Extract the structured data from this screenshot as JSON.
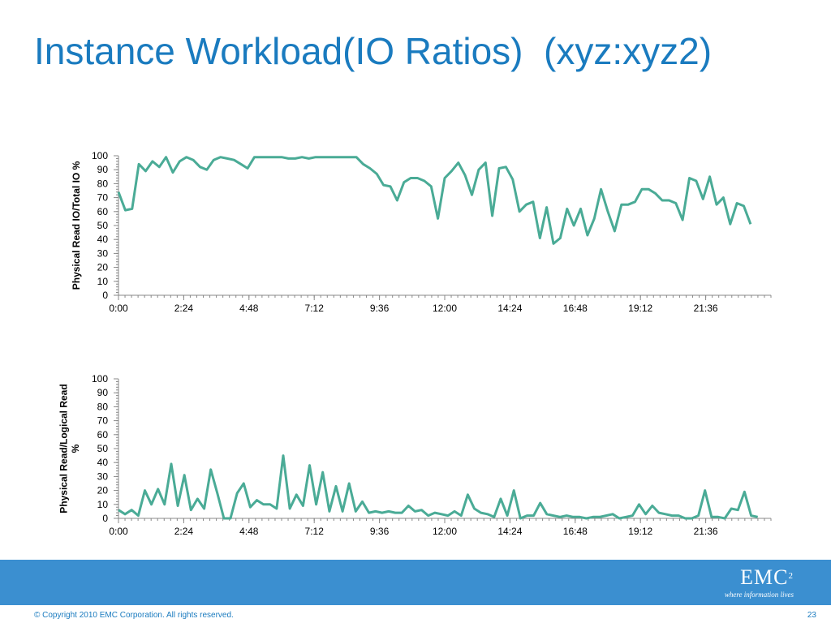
{
  "slide": {
    "title": "Instance Workload(IO Ratios)  (xyz:xyz2)",
    "copyright": "© Copyright 2010  EMC Corporation.  All rights reserved.",
    "page_number": "23",
    "logo_text": "EMC",
    "logo_superscript": "2",
    "logo_tagline": "where information lives"
  },
  "colors": {
    "title": "#1a7bbf",
    "series": "#4aab96",
    "footer_band": "#3b8fd0"
  },
  "chart_data": [
    {
      "type": "line",
      "title": "",
      "xlabel": "",
      "ylabel": "Physical Read IO/Total IO %",
      "ylim": [
        0,
        100
      ],
      "yticks": [
        "0",
        "10",
        "20",
        "30",
        "40",
        "50",
        "60",
        "70",
        "80",
        "90",
        "100"
      ],
      "xticks": [
        "0:00",
        "2:24",
        "4:48",
        "7:12",
        "9:36",
        "12:00",
        "14:24",
        "16:48",
        "19:12",
        "21:36"
      ],
      "x_range_hours": [
        0,
        24
      ],
      "grid": false,
      "series": [
        {
          "values": [
            74,
            61,
            62,
            94,
            89,
            96,
            92,
            99,
            88,
            96,
            99,
            97,
            92,
            90,
            97,
            99,
            98,
            97,
            94,
            91,
            99,
            99,
            99,
            99,
            99,
            98,
            98,
            99,
            98,
            99,
            99,
            99,
            99,
            99,
            99,
            99,
            94,
            91,
            87,
            79,
            78,
            68,
            81,
            84,
            84,
            82,
            78,
            55,
            84,
            89,
            95,
            86,
            72,
            90,
            95,
            57,
            91,
            92,
            83,
            60,
            65,
            67,
            41,
            63,
            37,
            41,
            62,
            50,
            62,
            43,
            55,
            76,
            60,
            46,
            65,
            65,
            67,
            76,
            76,
            73,
            68,
            68,
            66,
            54,
            84,
            82,
            69,
            85,
            65,
            70,
            51,
            66,
            64,
            51
          ],
          "x_start_hours": 0,
          "x_step_hours": 0.25
        }
      ]
    },
    {
      "type": "line",
      "title": "",
      "xlabel": "",
      "ylabel": "Physical Read/Logical Read %",
      "ylim": [
        0,
        100
      ],
      "yticks": [
        "0",
        "10",
        "20",
        "30",
        "40",
        "50",
        "60",
        "70",
        "80",
        "90",
        "100"
      ],
      "xticks": [
        "0:00",
        "2:24",
        "4:48",
        "7:12",
        "9:36",
        "12:00",
        "14:24",
        "16:48",
        "19:12",
        "21:36"
      ],
      "x_range_hours": [
        0,
        24
      ],
      "grid": false,
      "series": [
        {
          "values": [
            6,
            3,
            6,
            2,
            20,
            10,
            21,
            10,
            39,
            9,
            31,
            6,
            14,
            7,
            35,
            18,
            0,
            0,
            18,
            25,
            8,
            13,
            10,
            10,
            7,
            45,
            7,
            17,
            9,
            38,
            10,
            33,
            5,
            23,
            5,
            25,
            5,
            12,
            4,
            5,
            4,
            5,
            4,
            4,
            9,
            5,
            6,
            2,
            4,
            3,
            2,
            5,
            2,
            17,
            7,
            4,
            3,
            1,
            14,
            2,
            20,
            0,
            2,
            2,
            11,
            3,
            2,
            1,
            2,
            1,
            1,
            0,
            1,
            1,
            2,
            3,
            0,
            1,
            2,
            10,
            3,
            9,
            4,
            3,
            2,
            2,
            0,
            0,
            2,
            20,
            1,
            1,
            0,
            7,
            6,
            19,
            2,
            1
          ],
          "x_start_hours": 0,
          "x_step_hours": 0.2424
        }
      ]
    }
  ]
}
